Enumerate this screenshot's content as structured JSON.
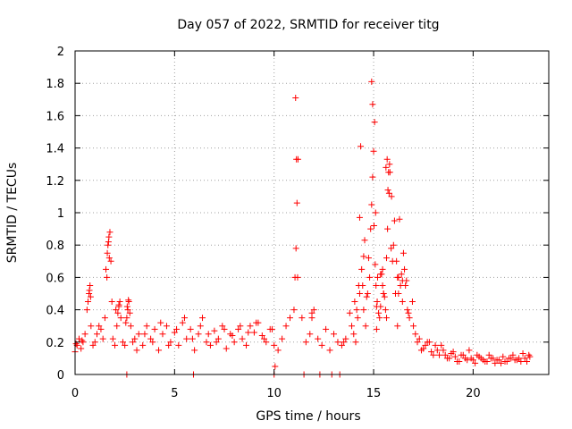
{
  "chart_data": {
    "type": "scatter",
    "title": "Day 057 of 2022, SRMTID for receiver titg",
    "xlabel": "GPS time / hours",
    "ylabel": "SRMTID / TECUs",
    "xlim": [
      0,
      23.8
    ],
    "ylim": [
      0,
      2
    ],
    "xticks": [
      0,
      5,
      10,
      15,
      20
    ],
    "xtick_labels": [
      "0",
      "5",
      "10",
      "15",
      "20"
    ],
    "yticks": [
      0,
      0.2,
      0.4,
      0.6,
      0.8,
      1,
      1.2,
      1.4,
      1.6,
      1.8,
      2
    ],
    "ytick_labels": [
      "0",
      "0.2",
      "0.4",
      "0.6",
      "0.8",
      "1",
      "1.2",
      "1.4",
      "1.6",
      "1.8",
      "2"
    ],
    "grid": true,
    "marker": "+",
    "series": [
      {
        "name": "SRMTID",
        "color": "#ff0000",
        "x": [
          0.0,
          0.1,
          0.2,
          0.3,
          0.4,
          0.5,
          0.6,
          0.7,
          0.75,
          0.8,
          0.9,
          1.0,
          1.1,
          1.2,
          1.3,
          1.4,
          1.5,
          1.6,
          1.65,
          1.7,
          1.75,
          1.8,
          1.85,
          1.9,
          2.0,
          2.1,
          2.2,
          2.25,
          2.3,
          2.4,
          2.5,
          2.6,
          2.65,
          2.7,
          2.75,
          2.8,
          2.9,
          3.0,
          3.2,
          3.4,
          3.6,
          3.8,
          4.0,
          4.2,
          4.4,
          4.6,
          4.8,
          5.0,
          5.2,
          5.4,
          5.6,
          5.8,
          6.0,
          6.2,
          6.4,
          6.6,
          6.8,
          7.0,
          7.2,
          7.4,
          7.6,
          7.8,
          8.0,
          8.2,
          8.4,
          8.6,
          8.8,
          9.0,
          9.2,
          9.4,
          9.6,
          9.8,
          10.0,
          10.2,
          10.4,
          10.6,
          10.8,
          11.0,
          11.05,
          11.1,
          11.15,
          11.2,
          11.4,
          11.6,
          11.8,
          11.9,
          12.0,
          12.2,
          12.4,
          12.6,
          12.8,
          13.0,
          13.2,
          13.4,
          13.6,
          13.8,
          14.0,
          14.1,
          14.2,
          14.25,
          14.3,
          14.4,
          14.5,
          14.6,
          14.7,
          14.75,
          14.8,
          14.85,
          14.9,
          14.95,
          15.0,
          15.05,
          15.1,
          15.2,
          15.3,
          15.4,
          15.5,
          15.6,
          15.65,
          15.7,
          15.75,
          15.8,
          15.9,
          16.0,
          16.1,
          16.2,
          16.3,
          16.4,
          16.5,
          16.6,
          16.7,
          16.8,
          17.0,
          17.2,
          17.4,
          17.6,
          17.8,
          18.0,
          18.2,
          18.4,
          18.6,
          18.8,
          19.0,
          19.2,
          19.4,
          19.6,
          19.8,
          20.0,
          20.2,
          20.4,
          20.6,
          20.8,
          21.0,
          21.2,
          21.4,
          21.6,
          21.8,
          22.0,
          22.2,
          22.4,
          22.6,
          22.8,
          0.05,
          0.35,
          0.65,
          0.72,
          0.78,
          1.55,
          1.62,
          1.68,
          1.72,
          2.05,
          2.15,
          2.2,
          2.55,
          2.62,
          2.68,
          10.05,
          11.08,
          11.12,
          11.18,
          11.9,
          14.3,
          14.35,
          14.5,
          14.55,
          14.9,
          14.95,
          15.02,
          15.08,
          15.12,
          15.18,
          15.25,
          15.35,
          15.45,
          15.55,
          15.62,
          15.68,
          15.72,
          15.78,
          15.82,
          15.88,
          16.05,
          16.15,
          16.25,
          16.35,
          16.45,
          16.55,
          16.65,
          16.75,
          2.6,
          5.95,
          10.0,
          11.5,
          12.3,
          12.9,
          13.3,
          3.1,
          3.5,
          3.9,
          4.3,
          4.7,
          5.1,
          5.5,
          5.9,
          6.3,
          6.7,
          7.1,
          7.5,
          7.9,
          8.3,
          8.7,
          9.1,
          9.5,
          9.9,
          13.5,
          13.9,
          14.05,
          14.15,
          14.45,
          14.65,
          15.15,
          15.45,
          15.95,
          16.25,
          16.95,
          17.1,
          17.3,
          17.5,
          17.7,
          17.9,
          18.1,
          18.3,
          18.5,
          18.7,
          18.9,
          19.1,
          19.3,
          19.5,
          19.7,
          19.9,
          20.1,
          20.3,
          20.5,
          20.7,
          20.9,
          21.1,
          21.3,
          21.5,
          21.7,
          21.9,
          22.1,
          22.3,
          22.5,
          22.7,
          22.85,
          15.15,
          15.35,
          15.5,
          15.65,
          16.2,
          16.45
        ],
        "y": [
          0.14,
          0.18,
          0.22,
          0.16,
          0.2,
          0.25,
          0.4,
          0.5,
          0.55,
          0.3,
          0.18,
          0.2,
          0.25,
          0.3,
          0.28,
          0.22,
          0.35,
          0.6,
          0.8,
          0.85,
          0.88,
          0.7,
          0.45,
          0.22,
          0.18,
          0.3,
          0.42,
          0.45,
          0.35,
          0.2,
          0.18,
          0.35,
          0.4,
          0.45,
          0.38,
          0.3,
          0.2,
          0.22,
          0.25,
          0.18,
          0.3,
          0.22,
          0.28,
          0.15,
          0.25,
          0.3,
          0.2,
          0.26,
          0.18,
          0.32,
          0.22,
          0.28,
          0.15,
          0.25,
          0.35,
          0.2,
          0.18,
          0.27,
          0.22,
          0.3,
          0.16,
          0.25,
          0.2,
          0.28,
          0.22,
          0.18,
          0.3,
          0.26,
          0.32,
          0.24,
          0.2,
          0.28,
          0.18,
          0.15,
          0.22,
          0.3,
          0.35,
          0.4,
          0.6,
          0.78,
          1.06,
          1.33,
          0.35,
          0.2,
          0.25,
          0.38,
          0.4,
          0.22,
          0.18,
          0.28,
          0.15,
          0.25,
          0.2,
          0.18,
          0.22,
          0.38,
          0.25,
          0.2,
          0.35,
          0.55,
          0.5,
          0.65,
          0.4,
          0.3,
          0.5,
          0.72,
          0.6,
          0.9,
          1.05,
          1.22,
          1.38,
          1.56,
          1.0,
          0.6,
          0.35,
          0.62,
          0.5,
          0.4,
          0.72,
          0.9,
          1.25,
          1.3,
          1.1,
          0.8,
          0.5,
          0.3,
          0.96,
          0.62,
          0.75,
          0.55,
          0.4,
          0.35,
          0.3,
          0.2,
          0.15,
          0.18,
          0.2,
          0.12,
          0.15,
          0.18,
          0.12,
          0.1,
          0.14,
          0.08,
          0.12,
          0.1,
          0.15,
          0.09,
          0.12,
          0.1,
          0.08,
          0.12,
          0.1,
          0.09,
          0.07,
          0.08,
          0.1,
          0.12,
          0.09,
          0.08,
          0.1,
          0.12,
          0.19,
          0.21,
          0.45,
          0.52,
          0.48,
          0.65,
          0.75,
          0.82,
          0.72,
          0.4,
          0.38,
          0.43,
          0.32,
          0.42,
          0.46,
          0.05,
          1.71,
          1.33,
          0.6,
          0.35,
          0.97,
          1.41,
          0.73,
          0.83,
          1.81,
          1.67,
          0.92,
          0.68,
          0.55,
          0.45,
          0.38,
          0.62,
          0.55,
          0.48,
          1.28,
          1.33,
          1.14,
          1.12,
          1.25,
          0.78,
          0.95,
          0.7,
          0.6,
          0.55,
          0.45,
          0.65,
          0.58,
          0.38,
          0.0,
          0.0,
          0.0,
          0.0,
          0.0,
          0.0,
          0.0,
          0.15,
          0.25,
          0.2,
          0.32,
          0.18,
          0.28,
          0.35,
          0.22,
          0.3,
          0.25,
          0.2,
          0.28,
          0.24,
          0.3,
          0.26,
          0.32,
          0.22,
          0.28,
          0.2,
          0.3,
          0.45,
          0.4,
          0.55,
          0.48,
          0.42,
          0.65,
          0.7,
          0.5,
          0.45,
          0.25,
          0.22,
          0.16,
          0.2,
          0.14,
          0.18,
          0.12,
          0.15,
          0.1,
          0.13,
          0.11,
          0.08,
          0.12,
          0.09,
          0.1,
          0.07,
          0.11,
          0.09,
          0.08,
          0.1,
          0.07,
          0.09,
          0.11,
          0.08,
          0.1,
          0.09,
          0.1,
          0.13,
          0.08,
          0.11,
          0.28,
          0.42,
          0.5,
          0.35,
          0.6,
          0.58
        ]
      }
    ]
  }
}
